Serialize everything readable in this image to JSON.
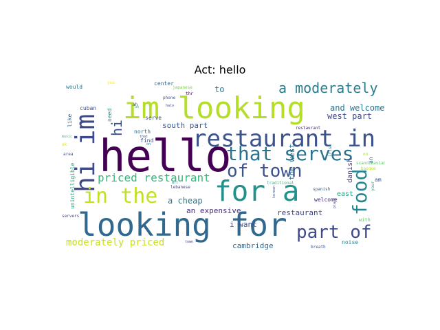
{
  "title": "Act: hello",
  "words": [
    {
      "text": "hello",
      "color": "#440154"
    },
    {
      "text": "looking for",
      "color": "#31688e"
    },
    {
      "text": "im looking",
      "color": "#b5de2b"
    },
    {
      "text": "restaurant in",
      "color": "#3b528b"
    },
    {
      "text": "for a",
      "color": "#21918c"
    },
    {
      "text": "hi im",
      "color": "#3e4989"
    },
    {
      "text": "in the",
      "color": "#c2df23"
    },
    {
      "text": "that serves",
      "color": "#2c728e"
    },
    {
      "text": "part of",
      "color": "#3e4a89"
    },
    {
      "text": "of town",
      "color": "#3b528b"
    },
    {
      "text": "food",
      "color": "#25858e"
    },
    {
      "text": "a moderately",
      "color": "#287c8e"
    },
    {
      "text": "priced restaurant",
      "color": "#35b779"
    },
    {
      "text": "hi",
      "color": "#3b528b"
    },
    {
      "text": "moderately priced",
      "color": "#c8e020"
    },
    {
      "text": "a cheap",
      "color": "#2a788e"
    },
    {
      "text": "west part",
      "color": "#3e4989"
    },
    {
      "text": "and welcome",
      "color": "#2c728e"
    },
    {
      "text": "south part",
      "color": "#39558c"
    },
    {
      "text": "an expensive",
      "color": "#472d7b"
    },
    {
      "text": "restaurant",
      "color": "#414487"
    },
    {
      "text": "i want",
      "color": "#3b528b"
    },
    {
      "text": "cambridge",
      "color": "#31688e"
    },
    {
      "text": "to",
      "color": "#2a788e"
    },
    {
      "text": "the west",
      "color": "#2d708e"
    },
    {
      "text": "danish",
      "color": "#453781"
    },
    {
      "text": "east",
      "color": "#20a386"
    },
    {
      "text": "welcome",
      "color": "#472c7a"
    },
    {
      "text": "noise",
      "color": "#26828e"
    },
    {
      "text": "cuban",
      "color": "#3e4a89"
    },
    {
      "text": "would",
      "color": "#2a788e"
    },
    {
      "text": "center",
      "color": "#31688e"
    },
    {
      "text": "serve",
      "color": "#3b528b"
    },
    {
      "text": "north",
      "color": "#2c728e"
    },
    {
      "text": "need",
      "color": "#21918c"
    },
    {
      "text": "like",
      "color": "#33638d"
    },
    {
      "text": "find",
      "color": "#3e4a89"
    },
    {
      "text": "unintelligible",
      "color": "#22a884"
    },
    {
      "text": "an",
      "color": "#2d708e"
    },
    {
      "text": "am",
      "color": "#3b528b"
    },
    {
      "text": "with",
      "color": "#5ec962"
    },
    {
      "text": "japanese",
      "color": "#7ad151"
    },
    {
      "text": "phone",
      "color": "#3b528b"
    },
    {
      "text": "thr",
      "color": "#440154"
    },
    {
      "text": "halo",
      "color": "#3e4989"
    },
    {
      "text": "restaurant",
      "color": "#482475"
    },
    {
      "text": "vegetarian",
      "color": "#21918c"
    },
    {
      "text": "lebanese",
      "color": "#404688"
    },
    {
      "text": "traditional",
      "color": "#35b779"
    },
    {
      "text": "spanish",
      "color": "#38598c"
    },
    {
      "text": "korean",
      "color": "#3b528b"
    },
    {
      "text": "irish",
      "color": "#2c728e"
    },
    {
      "text": "place",
      "color": "#3e4989"
    },
    {
      "text": "your",
      "color": "#22a884"
    },
    {
      "text": "scandinavian",
      "color": "#5ec962"
    },
    {
      "text": "basque",
      "color": "#b5de2b"
    },
    {
      "text": "on",
      "color": "#a0da39"
    },
    {
      "text": "breath",
      "color": "#3b528b"
    },
    {
      "text": "town",
      "color": "#443983"
    },
    {
      "text": "servers",
      "color": "#3e4989"
    },
    {
      "text": "any",
      "color": "#2a788e"
    },
    {
      "text": "area",
      "color": "#3e4a89"
    },
    {
      "text": "music",
      "color": "#35b779"
    },
    {
      "text": "that",
      "color": "#3b528b"
    },
    {
      "text": "on",
      "color": "#2c728e"
    },
    {
      "text": "art",
      "color": "#26828e"
    },
    {
      "text": "you",
      "color": "#fde725"
    },
    {
      "text": "ok",
      "color": "#d8e219"
    },
    {
      "text": "ah",
      "color": "#482878"
    },
    {
      "text": "uh",
      "color": "#27ad81"
    }
  ]
}
